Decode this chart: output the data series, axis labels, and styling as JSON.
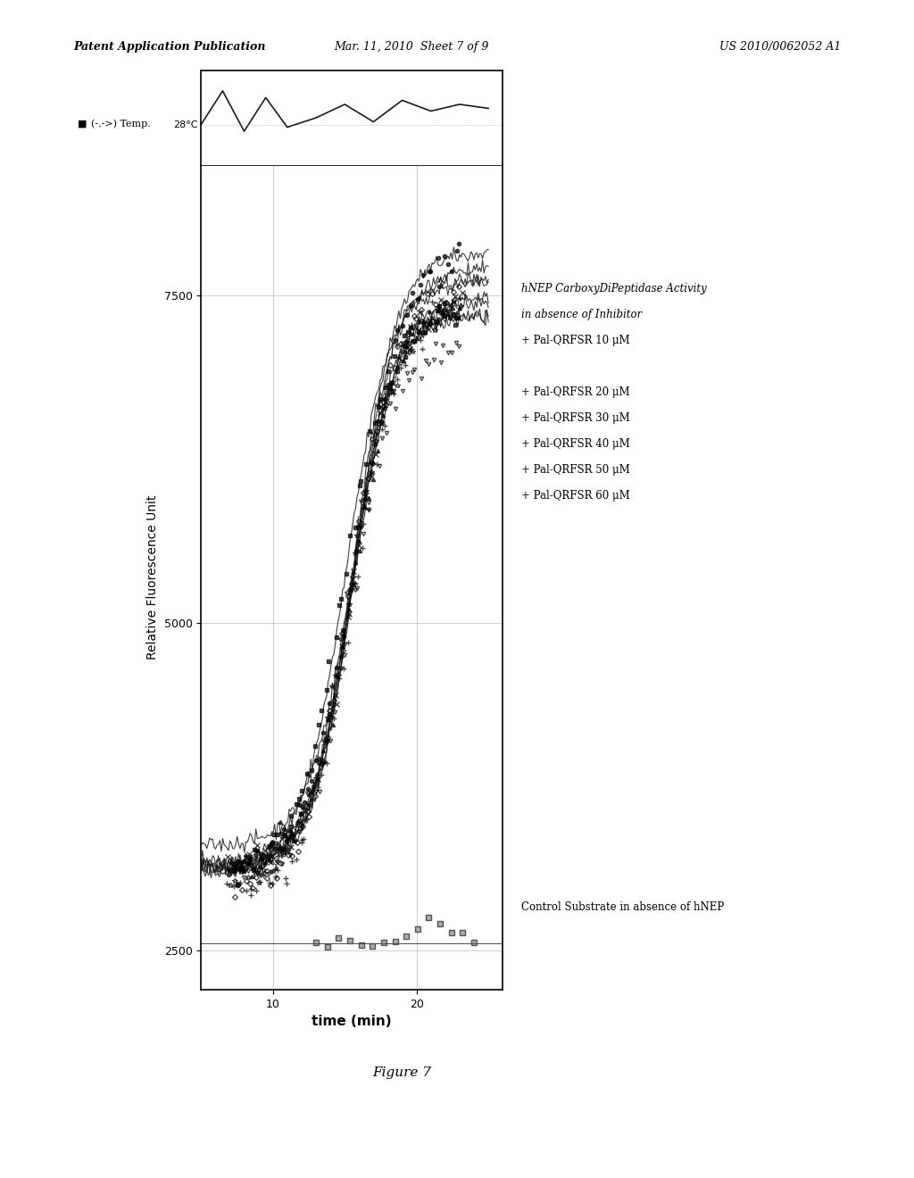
{
  "header_left": "Patent Application Publication",
  "header_center": "Mar. 11, 2010  Sheet 7 of 9",
  "header_right": "US 2010/0062052 A1",
  "figure_caption": "Figure 7",
  "ylabel": "Relative Fluorescence Unit",
  "xlabel": "time (min)",
  "ylim": [
    2200,
    8500
  ],
  "xlim": [
    5,
    26
  ],
  "yticks": [
    2500,
    5000,
    7500
  ],
  "xticks": [
    10,
    20
  ],
  "temp_label": "28°C",
  "arrow_label": "(-.->) Temp.",
  "legend_lines": [
    "hNEP CarboxyDiPeptidase Activity",
    "in absence of Inhibitor",
    "+ Pal-QRFSR 10 μM",
    "",
    "+ Pal-QRFSR 20 μM",
    "+ Pal-QRFSR 30 μM",
    "+ Pal-QRFSR 40 μM",
    "+ Pal-QRFSR 50 μM",
    "+ Pal-QRFSR 60 μM"
  ],
  "control_label": "Control Substrate in absence of hNEP",
  "background_color": "#ffffff",
  "plot_bg": "#ffffff",
  "curve_color": "#1a1a1a",
  "control_color": "#888888",
  "temp_color": "#1a1a1a",
  "grid_color": "#999999"
}
